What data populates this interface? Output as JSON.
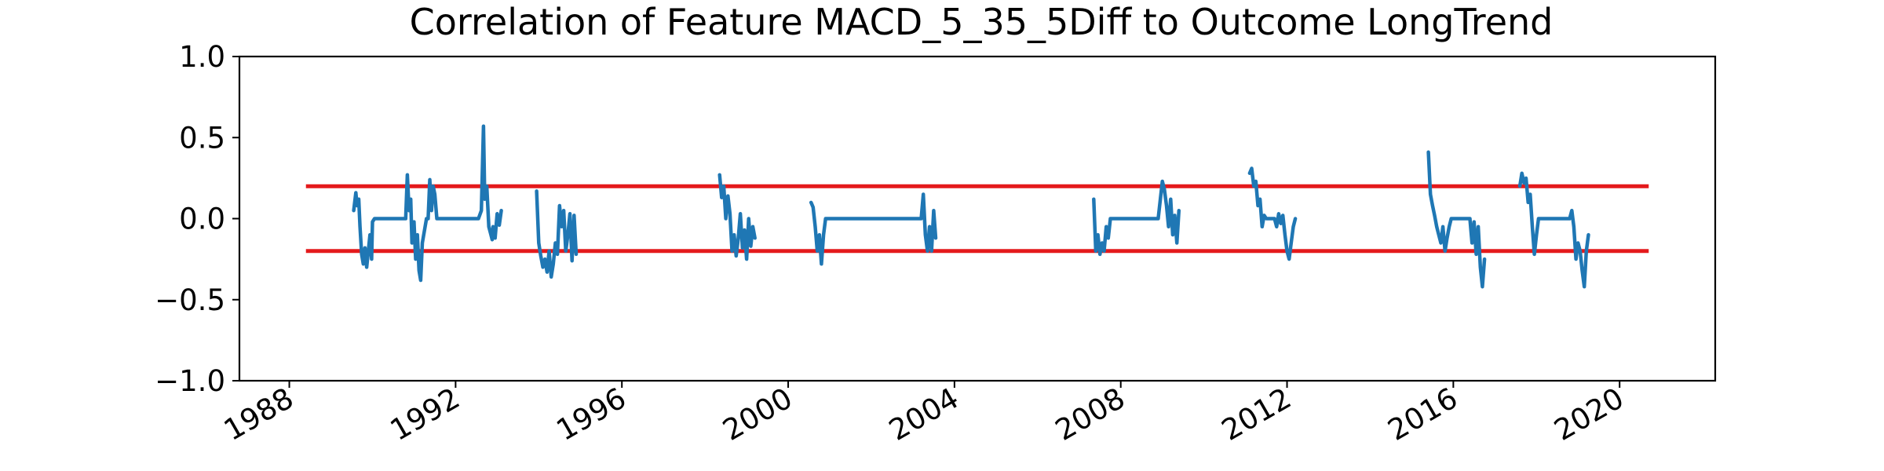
{
  "chart_data": {
    "type": "line",
    "title": "Correlation of Feature MACD_5_35_5Diff to Outcome LongTrend",
    "xlabel": "",
    "ylabel": "",
    "xlim": [
      1986.8,
      2022.3
    ],
    "ylim": [
      -1.0,
      1.0
    ],
    "grid": false,
    "legend": "none",
    "x_ticks": [
      1988,
      1992,
      1996,
      2000,
      2004,
      2008,
      2012,
      2016,
      2020
    ],
    "x_tick_labels": [
      "1988",
      "1992",
      "1996",
      "2000",
      "2004",
      "2008",
      "2012",
      "2016",
      "2020"
    ],
    "y_ticks": [
      1.0,
      0.5,
      0.0,
      -0.5,
      -1.0
    ],
    "y_tick_labels": [
      "1.0",
      "0.5",
      "0.0",
      "−0.5",
      "−1.0"
    ],
    "threshold_lines": [
      {
        "y": 0.2,
        "x_start": 1988.4,
        "x_end": 2020.7,
        "color": "#e41a1c"
      },
      {
        "y": -0.2,
        "x_start": 1988.4,
        "x_end": 2020.7,
        "color": "#e41a1c"
      }
    ],
    "series_color": "#1f77b4",
    "segments": [
      {
        "x": [
          1989.55,
          1989.6,
          1989.63,
          1989.67,
          1989.7,
          1989.74,
          1989.78,
          1989.82,
          1989.86,
          1989.9,
          1989.94,
          1989.98,
          1990.0,
          1990.05,
          1990.1,
          1990.15,
          1990.6,
          1990.8,
          1990.84,
          1990.88,
          1990.92,
          1990.95,
          1991.0,
          1991.04,
          1991.08,
          1991.12,
          1991.16,
          1991.2,
          1991.3,
          1991.34,
          1991.38,
          1991.42,
          1991.46,
          1991.5,
          1991.55,
          1991.6,
          1991.65,
          1991.7,
          1992.3,
          1992.55,
          1992.62,
          1992.67,
          1992.7,
          1992.75,
          1992.8,
          1992.85,
          1992.88,
          1992.9,
          1992.95,
          1993.0,
          1993.05,
          1993.1
        ],
        "y": [
          0.05,
          0.16,
          0.08,
          0.12,
          -0.05,
          -0.22,
          -0.28,
          -0.18,
          -0.3,
          -0.2,
          -0.1,
          -0.25,
          -0.02,
          0.0,
          0.0,
          0.0,
          0.0,
          0.0,
          0.27,
          0.05,
          0.12,
          -0.15,
          -0.02,
          -0.25,
          -0.1,
          -0.32,
          -0.38,
          -0.15,
          0.0,
          0.0,
          0.24,
          0.05,
          0.2,
          0.15,
          0.0,
          0.0,
          0.0,
          0.0,
          0.0,
          0.0,
          0.05,
          0.57,
          0.12,
          0.2,
          -0.05,
          -0.1,
          -0.13,
          -0.05,
          -0.12,
          0.03,
          -0.04,
          0.05
        ]
      },
      {
        "x": [
          1993.95,
          1994.0,
          1994.05,
          1994.1,
          1994.15,
          1994.2,
          1994.25,
          1994.3,
          1994.35,
          1994.4,
          1994.45,
          1994.5,
          1994.55,
          1994.6,
          1994.65,
          1994.7,
          1994.75,
          1994.8,
          1994.85,
          1994.9
        ],
        "y": [
          0.17,
          -0.15,
          -0.23,
          -0.3,
          -0.25,
          -0.33,
          -0.2,
          -0.36,
          -0.28,
          -0.15,
          -0.22,
          0.08,
          -0.05,
          0.05,
          -0.2,
          -0.1,
          0.03,
          -0.26,
          0.02,
          -0.22
        ]
      },
      {
        "x": [
          1998.35,
          1998.4,
          1998.45,
          1998.5,
          1998.55,
          1998.6,
          1998.65,
          1998.7,
          1998.75,
          1998.8,
          1998.85,
          1998.9,
          1998.95,
          1999.0,
          1999.05,
          1999.1,
          1999.15,
          1999.2
        ],
        "y": [
          0.27,
          0.13,
          0.2,
          0.0,
          0.14,
          0.03,
          -0.2,
          -0.1,
          -0.23,
          -0.12,
          0.03,
          -0.18,
          -0.07,
          -0.25,
          0.0,
          -0.17,
          -0.05,
          -0.12
        ]
      },
      {
        "x": [
          2000.55,
          2000.6,
          2000.65,
          2000.7,
          2000.75,
          2000.8,
          2000.85,
          2000.9,
          2003.2,
          2003.25,
          2003.3,
          2003.35,
          2003.4,
          2003.45,
          2003.5,
          2003.55
        ],
        "y": [
          0.1,
          0.07,
          -0.05,
          -0.2,
          -0.1,
          -0.28,
          -0.1,
          0.0,
          0.0,
          0.15,
          -0.1,
          -0.2,
          -0.05,
          -0.2,
          0.05,
          -0.12
        ]
      },
      {
        "x": [
          2007.35,
          2007.4,
          2007.45,
          2007.5,
          2007.55,
          2007.6,
          2007.65,
          2007.7,
          2007.75,
          2008.9,
          2009.0,
          2009.05,
          2009.1,
          2009.15,
          2009.2,
          2009.25,
          2009.3,
          2009.35,
          2009.4
        ],
        "y": [
          0.12,
          -0.2,
          -0.1,
          -0.22,
          -0.15,
          -0.2,
          -0.05,
          -0.12,
          0.0,
          0.0,
          0.23,
          0.18,
          0.08,
          -0.05,
          0.12,
          -0.1,
          0.02,
          -0.15,
          0.05
        ]
      },
      {
        "x": [
          2011.1,
          2011.15,
          2011.2,
          2011.25,
          2011.3,
          2011.35,
          2011.4,
          2011.45,
          2011.5,
          2011.55,
          2011.6,
          2011.65,
          2011.7,
          2011.75,
          2011.8,
          2011.85,
          2011.9,
          2011.95,
          2012.0,
          2012.05,
          2012.1,
          2012.15,
          2012.2
        ],
        "y": [
          0.28,
          0.31,
          0.2,
          0.23,
          0.08,
          0.12,
          -0.05,
          0.02,
          0.0,
          0.0,
          0.0,
          0.0,
          0.0,
          -0.05,
          0.03,
          -0.03,
          0.02,
          -0.1,
          -0.2,
          -0.25,
          -0.15,
          -0.05,
          0.0
        ]
      },
      {
        "x": [
          2015.4,
          2015.45,
          2015.5,
          2015.55,
          2015.6,
          2015.65,
          2015.7,
          2015.75,
          2015.8,
          2015.85,
          2015.9,
          2015.95,
          2016.0,
          2016.4,
          2016.45,
          2016.5,
          2016.55,
          2016.6,
          2016.65,
          2016.7,
          2016.75
        ],
        "y": [
          0.41,
          0.15,
          0.08,
          0.02,
          -0.05,
          -0.1,
          -0.15,
          -0.05,
          -0.2,
          -0.12,
          -0.05,
          0.0,
          0.0,
          0.0,
          -0.15,
          -0.02,
          -0.22,
          -0.05,
          -0.3,
          -0.42,
          -0.25
        ]
      },
      {
        "x": [
          2017.6,
          2017.65,
          2017.7,
          2017.75,
          2017.8,
          2017.85,
          2017.9,
          2017.95,
          2018.0,
          2018.05,
          2018.8,
          2018.85,
          2018.9,
          2018.95,
          2019.0,
          2019.05,
          2019.1,
          2019.15,
          2019.2,
          2019.25
        ],
        "y": [
          0.2,
          0.28,
          0.22,
          0.25,
          0.1,
          0.15,
          -0.05,
          -0.22,
          -0.1,
          0.0,
          0.0,
          0.05,
          -0.05,
          -0.25,
          -0.15,
          -0.2,
          -0.32,
          -0.42,
          -0.2,
          -0.1
        ]
      }
    ]
  }
}
